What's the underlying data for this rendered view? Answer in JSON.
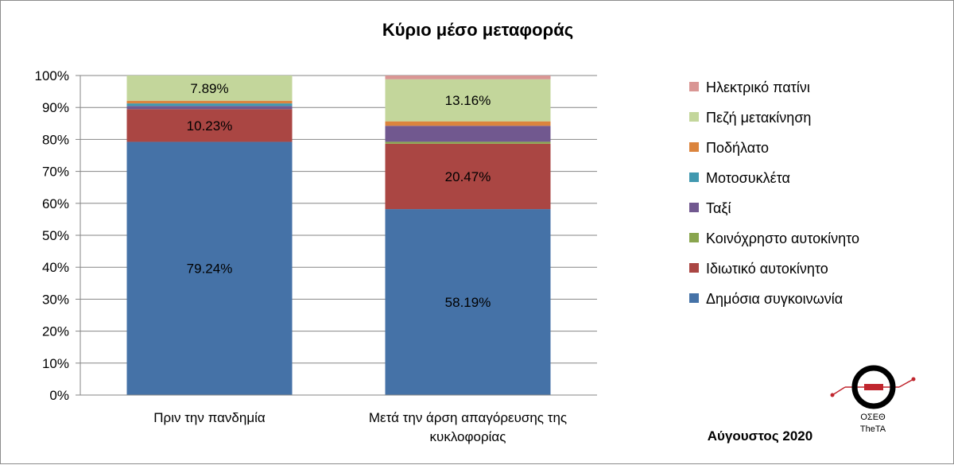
{
  "chart_data": {
    "type": "bar",
    "stacked": true,
    "title": "Κύριο μέσο μεταφοράς",
    "xlabel": "",
    "ylabel": "",
    "ylim": [
      0,
      100
    ],
    "yticks": [
      "0%",
      "10%",
      "20%",
      "30%",
      "40%",
      "50%",
      "60%",
      "70%",
      "80%",
      "90%",
      "100%"
    ],
    "categories": [
      [
        "Πριν την πανδημία"
      ],
      [
        "Μετά την άρση απαγόρευσης της",
        "κυκλοφορίας"
      ]
    ],
    "series": [
      {
        "name": "Δημόσια συγκοινωνία",
        "color": "#4572a7",
        "values": [
          79.24,
          58.19
        ],
        "labels": [
          "79.24%",
          "58.19%"
        ]
      },
      {
        "name": "Ιδιωτικό αυτοκίνητο",
        "color": "#aa4643",
        "values": [
          10.23,
          20.47
        ],
        "labels": [
          "10.23%",
          "20.47%"
        ]
      },
      {
        "name": "Κοινόχρηστο αυτοκίνητο",
        "color": "#89a54e",
        "values": [
          0.0,
          0.6
        ],
        "labels": [
          "",
          ""
        ]
      },
      {
        "name": "Ταξί",
        "color": "#71588f",
        "values": [
          1.0,
          5.0
        ],
        "labels": [
          "",
          ""
        ]
      },
      {
        "name": "Μοτοσυκλέτα",
        "color": "#4198af",
        "values": [
          0.8,
          0.0
        ],
        "labels": [
          "",
          ""
        ]
      },
      {
        "name": "Ποδήλατο",
        "color": "#db843d",
        "values": [
          0.84,
          1.4
        ],
        "labels": [
          "",
          ""
        ]
      },
      {
        "name": "Πεζή μετακίνηση",
        "color": "#c3d69b",
        "values": [
          7.89,
          13.16
        ],
        "labels": [
          "7.89%",
          "13.16%"
        ]
      },
      {
        "name": "Ηλεκτρικό πατίνι",
        "color": "#d99694",
        "values": [
          0.0,
          1.18
        ],
        "labels": [
          "",
          ""
        ]
      }
    ],
    "legend_position": "right",
    "grid": true
  },
  "footer": {
    "date": "Αύγουστος 2020",
    "logo_text_1": "ΟΣΕΘ",
    "logo_text_2": "TheTA"
  }
}
